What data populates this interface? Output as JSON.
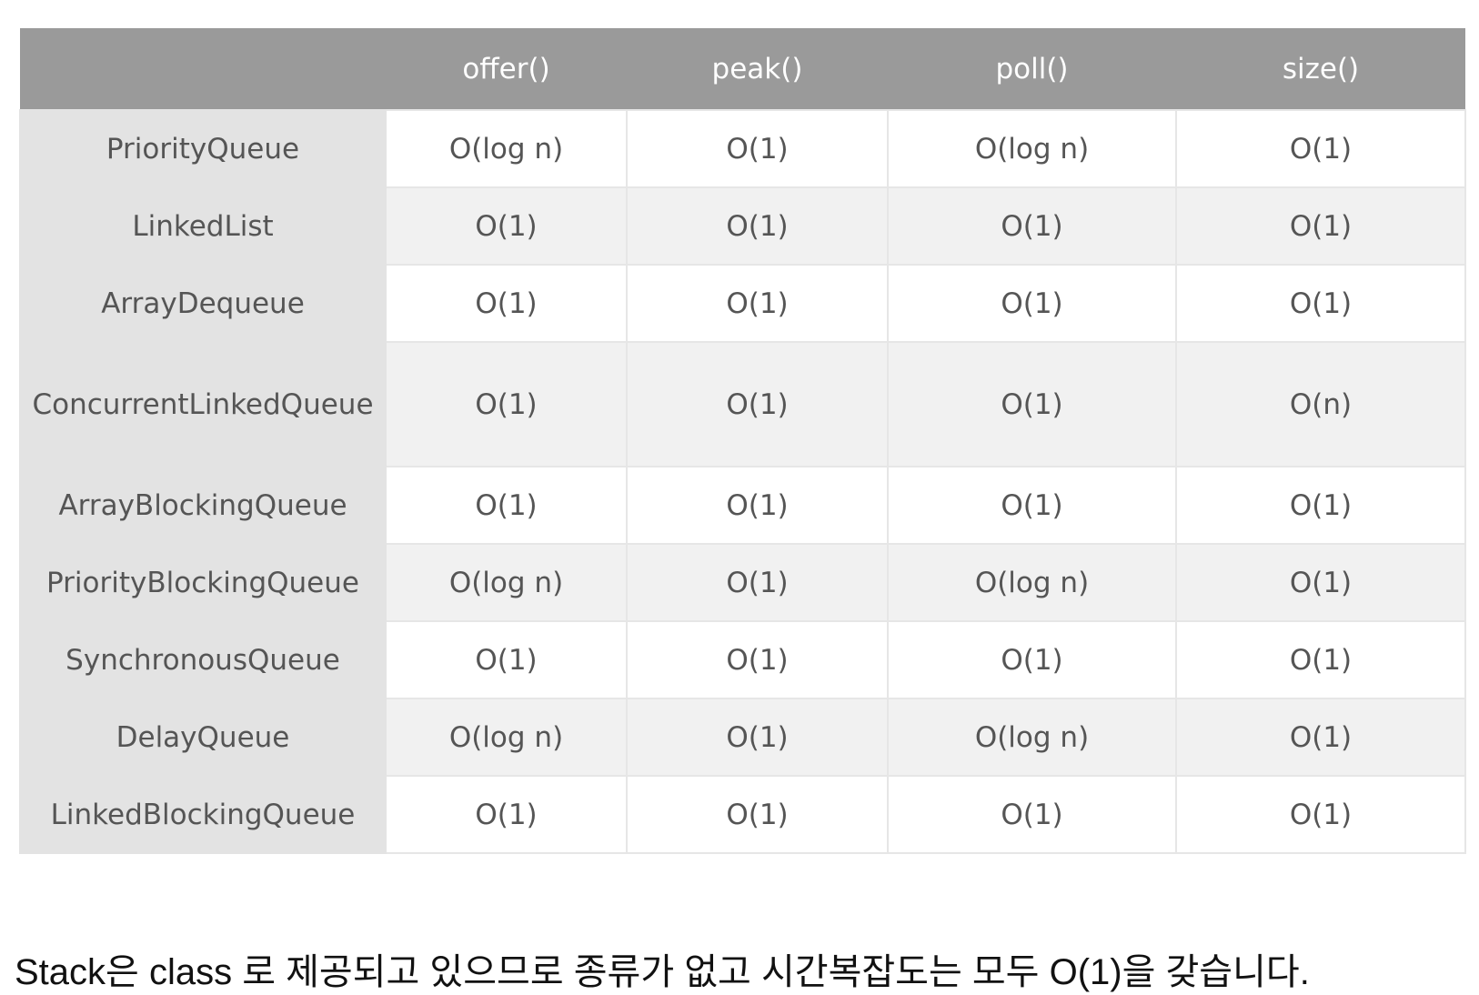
{
  "table": {
    "headers": [
      "",
      "offer()",
      "peak()",
      "poll()",
      "size()"
    ],
    "rows": [
      {
        "name": "PriorityQueue",
        "values": [
          "O(log n)",
          "O(1)",
          "O(log n)",
          "O(1)"
        ]
      },
      {
        "name": "LinkedList",
        "values": [
          "O(1)",
          "O(1)",
          "O(1)",
          "O(1)"
        ]
      },
      {
        "name": "ArrayDequeue",
        "values": [
          "O(1)",
          "O(1)",
          "O(1)",
          "O(1)"
        ]
      },
      {
        "name": "ConcurrentLinkedQueue",
        "values": [
          "O(1)",
          "O(1)",
          "O(1)",
          "O(n)"
        ]
      },
      {
        "name": "ArrayBlockingQueue",
        "values": [
          "O(1)",
          "O(1)",
          "O(1)",
          "O(1)"
        ]
      },
      {
        "name": "PriorityBlockingQueue",
        "values": [
          "O(log n)",
          "O(1)",
          "O(log n)",
          "O(1)"
        ]
      },
      {
        "name": "SynchronousQueue",
        "values": [
          "O(1)",
          "O(1)",
          "O(1)",
          "O(1)"
        ]
      },
      {
        "name": "DelayQueue",
        "values": [
          "O(log n)",
          "O(1)",
          "O(log n)",
          "O(1)"
        ]
      },
      {
        "name": "LinkedBlockingQueue",
        "values": [
          "O(1)",
          "O(1)",
          "O(1)",
          "O(1)"
        ]
      }
    ]
  },
  "note": "Stack은 class 로 제공되고 있으므로 종류가 없고 시간복잡도는 모두 O(1)을 갖습니다.",
  "colors": {
    "header_bg": "#9a9a9a",
    "row_head_bg": "#e3e3e3",
    "stripe_bg": "#f1f1f1"
  }
}
